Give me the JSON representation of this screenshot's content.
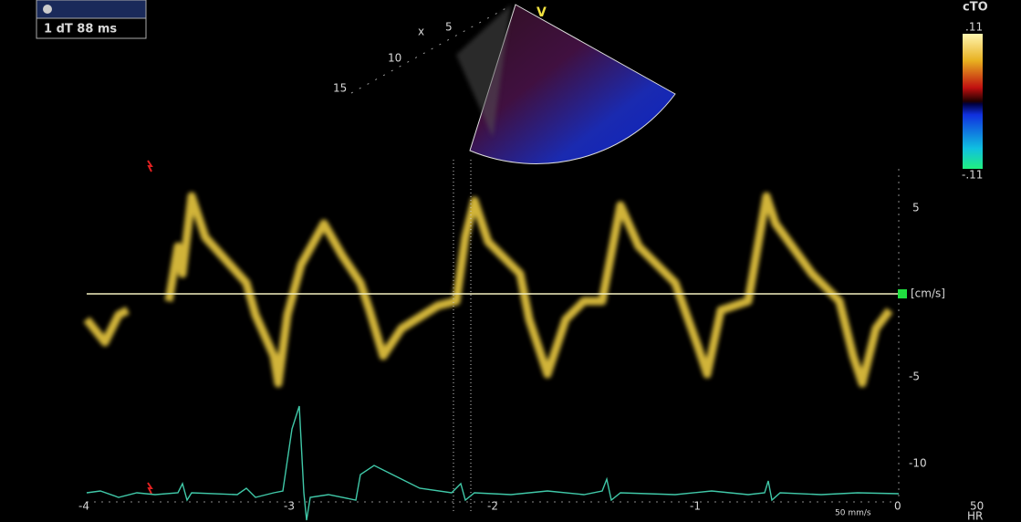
{
  "header": {
    "measurement": "1 dT 88 ms",
    "map_label": "cTO"
  },
  "color_scale": {
    "max": ".11",
    "min": "-.11"
  },
  "sector": {
    "marker": "V",
    "cursor": "x",
    "depth_labels": [
      "5",
      "10",
      "15"
    ]
  },
  "velocity_axis": {
    "unit": "[cm/s]",
    "ticks": [
      "5",
      "-5",
      "-10"
    ]
  },
  "time_axis": {
    "ticks": [
      "-4",
      "-3",
      "-2",
      "-1",
      "0"
    ],
    "sweep": "50 mm/s"
  },
  "heart_rate": {
    "value": "50",
    "label": "HR"
  }
}
